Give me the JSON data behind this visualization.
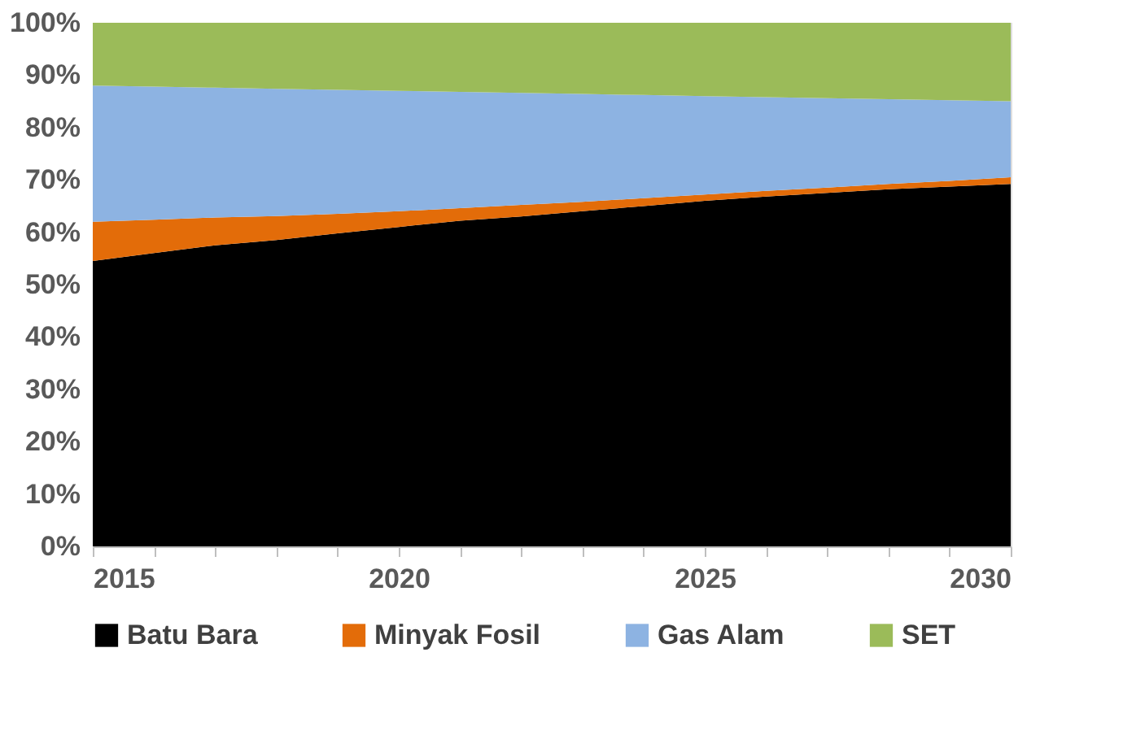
{
  "chart_data": {
    "type": "area",
    "stacked": true,
    "x": [
      2015,
      2016,
      2017,
      2018,
      2019,
      2020,
      2021,
      2022,
      2023,
      2024,
      2025,
      2026,
      2027,
      2028,
      2029,
      2030
    ],
    "series": [
      {
        "name": "Batu Bara",
        "color": "#000000",
        "values": [
          54.5,
          56,
          57.5,
          58.5,
          59.8,
          61,
          62.2,
          63,
          64,
          65,
          66,
          66.8,
          67.5,
          68.2,
          68.7,
          69.2
        ]
      },
      {
        "name": "Minyak Fosil",
        "color": "#e36c09",
        "values": [
          7.5,
          6.4,
          5.3,
          4.6,
          3.7,
          3,
          2.4,
          2.2,
          1.8,
          1.5,
          1.2,
          1.1,
          1,
          1,
          1.1,
          1.3
        ]
      },
      {
        "name": "Gas Alam",
        "color": "#8db3e2",
        "values": [
          26,
          25.4,
          24.8,
          24.3,
          23.7,
          23,
          22.2,
          21.4,
          20.6,
          19.7,
          18.8,
          17.9,
          17.1,
          16.2,
          15.4,
          14.5
        ]
      },
      {
        "name": "SET",
        "color": "#9bbb59",
        "values": [
          12,
          12.2,
          12.4,
          12.6,
          12.8,
          13,
          13.2,
          13.4,
          13.6,
          13.8,
          14,
          14.2,
          14.4,
          14.6,
          14.8,
          15
        ]
      }
    ],
    "xlim": [
      2015,
      2030
    ],
    "xticks": [
      2015,
      {
        "value": 2016,
        "label": null
      },
      {
        "value": 2017,
        "label": null
      },
      {
        "value": 2018,
        "label": null
      },
      {
        "value": 2019,
        "label": null
      },
      2020,
      {
        "value": 2021,
        "label": null
      },
      {
        "value": 2022,
        "label": null
      },
      {
        "value": 2023,
        "label": null
      },
      {
        "value": 2024,
        "label": null
      },
      2025,
      {
        "value": 2026,
        "label": null
      },
      {
        "value": 2027,
        "label": null
      },
      {
        "value": 2028,
        "label": null
      },
      {
        "value": 2029,
        "label": null
      },
      2030
    ],
    "ylim": [
      0,
      100
    ],
    "yticks": [
      {
        "value": 0,
        "label": "0%"
      },
      {
        "value": 10,
        "label": "10%"
      },
      {
        "value": 20,
        "label": "20%"
      },
      {
        "value": 30,
        "label": "30%"
      },
      {
        "value": 40,
        "label": "40%"
      },
      {
        "value": 50,
        "label": "50%"
      },
      {
        "value": 60,
        "label": "60%"
      },
      {
        "value": 70,
        "label": "70%"
      },
      {
        "value": 80,
        "label": "80%"
      },
      {
        "value": 90,
        "label": "90%"
      },
      {
        "value": 100,
        "label": "100%"
      }
    ],
    "grid": false,
    "legend": "bottom"
  }
}
